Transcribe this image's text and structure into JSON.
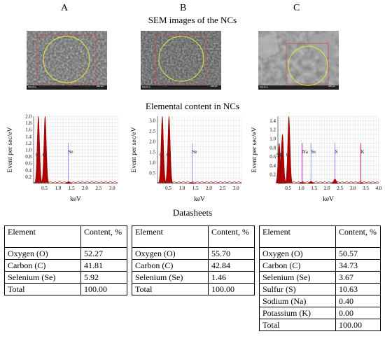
{
  "panel_labels": [
    "A",
    "B",
    "C"
  ],
  "sem_title": "SEM images of the NCs",
  "elemental_title": "Elemental content in NCs",
  "datasheets_title": "Datasheets",
  "sem_captions": {
    "mapping": "Mapping",
    "scale": "200 µm"
  },
  "colors": {
    "peak_fill": "#b00000",
    "grid": "#d8d8d8",
    "se_line": "#8f8fff",
    "na_line": "#c000c0",
    "s_line": "#a060ff",
    "k_line": "#e00030",
    "sem_circle": "#e4e640",
    "sem_rect": "#c05050"
  },
  "chart_data": [
    {
      "type": "line",
      "title": "",
      "xlabel": "keV",
      "ylabel": "Event per sec/eV",
      "xlim": [
        0.1,
        3.2
      ],
      "ylim": [
        0,
        2.0
      ],
      "xticks": [
        0.5,
        1.0,
        1.5,
        2.0,
        2.5,
        3.0
      ],
      "xtick_labels": [
        "0.5",
        "1.0",
        "1.5",
        "2.0",
        "2.5",
        "3.0"
      ],
      "yticks": [
        0,
        0.2,
        0.4,
        0.6,
        0.8,
        1.0,
        1.2,
        1.4,
        1.6,
        1.8,
        2.0
      ],
      "ytick_labels": [
        "",
        "0.2",
        "0.4",
        "0.6",
        "0.8",
        "1.0",
        "1.2",
        "1.4",
        "1.6",
        "1.8",
        "2.0"
      ],
      "peaks": [
        {
          "label": "C",
          "x": 0.277,
          "y": 2.0
        },
        {
          "label": "O",
          "x": 0.525,
          "y": 2.0
        },
        {
          "label": "Se",
          "x": 1.379,
          "y": 0.05
        }
      ]
    },
    {
      "type": "line",
      "title": "",
      "xlabel": "keV",
      "ylabel": "Event per sec/eV",
      "xlim": [
        0.1,
        3.2
      ],
      "ylim": [
        0,
        3.2
      ],
      "xticks": [
        0.5,
        1.0,
        1.5,
        2.0,
        2.5,
        3.0
      ],
      "xtick_labels": [
        "0.5",
        "1.0",
        "1.5",
        "2.0",
        "2.5",
        "3.0"
      ],
      "yticks": [
        0,
        0.5,
        1.0,
        1.5,
        2.0,
        2.5,
        3.0
      ],
      "ytick_labels": [
        "",
        "0.5",
        "1.0",
        "1.5",
        "2.0",
        "2.5",
        "3.0"
      ],
      "peaks": [
        {
          "label": "C",
          "x": 0.277,
          "y": 3.2
        },
        {
          "label": "O",
          "x": 0.525,
          "y": 3.2
        },
        {
          "label": "Se",
          "x": 1.379,
          "y": 0.04
        }
      ]
    },
    {
      "type": "line",
      "title": "",
      "xlabel": "keV",
      "ylabel": "Event per sec/eV",
      "xlim": [
        0.1,
        4.0
      ],
      "ylim": [
        0,
        1.5
      ],
      "xticks": [
        0.5,
        1.0,
        1.5,
        2.0,
        2.5,
        3.0,
        3.5,
        4.0
      ],
      "xtick_labels": [
        "0.5",
        "1.0",
        "1.5",
        "2.0",
        "2.5",
        "3.0",
        "3.5",
        "4.0"
      ],
      "yticks": [
        0,
        0.2,
        0.4,
        0.6,
        0.8,
        1.0,
        1.2,
        1.4
      ],
      "ytick_labels": [
        "",
        "0.2",
        "0.4",
        "0.6",
        "0.8",
        "1.0",
        "1.2",
        "1.4"
      ],
      "peaks": [
        {
          "label": "S",
          "x": 0.149,
          "y": 0.9
        },
        {
          "label": "K",
          "x": 0.26,
          "y": 0.95
        },
        {
          "label": "C",
          "x": 0.277,
          "y": 1.1
        },
        {
          "label": "O",
          "x": 0.525,
          "y": 1.5
        },
        {
          "label": "Na",
          "x": 1.04,
          "y": 0.03
        },
        {
          "label": "Se",
          "x": 1.379,
          "y": 0.05
        },
        {
          "label": "S",
          "x": 2.307,
          "y": 0.1
        },
        {
          "label": "K",
          "x": 3.312,
          "y": 0.02
        }
      ]
    },
    {
      "type": "table",
      "columns": [
        "Element",
        "Content, %"
      ],
      "rows": [
        [
          "Oxygen (O)",
          "52.27"
        ],
        [
          "Carbon (C)",
          "41.81"
        ],
        [
          "Selenium (Se)",
          "5.92"
        ],
        [
          "Total",
          "100.00"
        ]
      ]
    },
    {
      "type": "table",
      "columns": [
        "Element",
        "Content, %"
      ],
      "rows": [
        [
          "Oxygen (O)",
          "55.70"
        ],
        [
          "Carbon (C)",
          "42.84"
        ],
        [
          "Selenium (Se)",
          "1.46"
        ],
        [
          "Total",
          "100.00"
        ]
      ]
    },
    {
      "type": "table",
      "columns": [
        "Element",
        "Content, %"
      ],
      "rows": [
        [
          "Oxygen (O)",
          "50.57"
        ],
        [
          "Carbon (C)",
          "34.73"
        ],
        [
          "Selenium (Se)",
          "3.67"
        ],
        [
          "Sulfur (S)",
          "10.63"
        ],
        [
          "Sodium (Na)",
          "0.40"
        ],
        [
          "Potassium (K)",
          "0.00"
        ],
        [
          "Total",
          "100.00"
        ]
      ]
    }
  ]
}
